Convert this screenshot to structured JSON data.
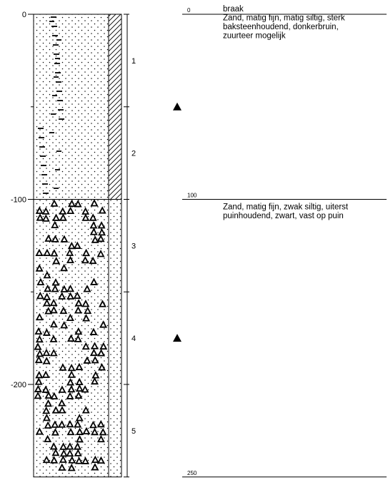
{
  "depth_axis": {
    "unit": "cm",
    "range": [
      0,
      250
    ],
    "tick_labels": [
      "0",
      "-100",
      "-200"
    ]
  },
  "layers": [
    {
      "top": 0,
      "bottom": 100,
      "lithology": "sand-silt",
      "top_label": "0",
      "lines": [
        "braak",
        "Zand, matig fijn, matig siltig, sterk",
        "baksteenhoudend, donkerbruin,",
        "zuurteer mogelijk"
      ]
    },
    {
      "top": 100,
      "bottom": 250,
      "lithology": "sand-rubble",
      "top_label": "100",
      "lines": [
        "Zand, matig fijn, zwak siltig, uiterst",
        "puinhoudend, zwart, vast op puin"
      ]
    }
  ],
  "bottom_label": "250",
  "samples": [
    {
      "label": "1",
      "top": 0,
      "bottom": 50
    },
    {
      "label": "2",
      "top": 50,
      "bottom": 100
    },
    {
      "label": "3",
      "top": 100,
      "bottom": 150
    },
    {
      "label": "4",
      "top": 150,
      "bottom": 200
    },
    {
      "label": "5",
      "top": 200,
      "bottom": 250
    }
  ],
  "groundwater_markers": [
    50,
    175
  ],
  "colors": {
    "ink": "#000000",
    "paper": "#ffffff"
  }
}
